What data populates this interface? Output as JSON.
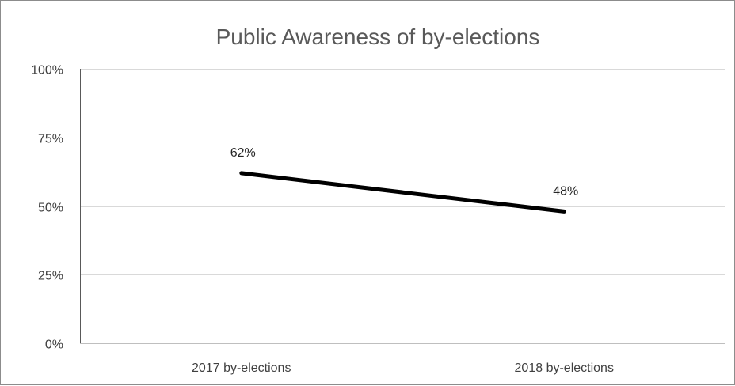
{
  "chart_data": {
    "type": "line",
    "title": "Public Awareness of by-elections",
    "categories": [
      "2017 by-elections",
      "2018 by-elections"
    ],
    "series": [
      {
        "values": [
          62,
          48
        ],
        "data_labels": [
          "62%",
          "48%"
        ],
        "color": "#000000"
      }
    ],
    "ylim": [
      0,
      100
    ],
    "yticks": [
      0,
      25,
      50,
      75,
      100
    ],
    "ytick_labels": [
      "0%",
      "25%",
      "50%",
      "75%",
      "100%"
    ],
    "grid": true,
    "legend": "none"
  }
}
